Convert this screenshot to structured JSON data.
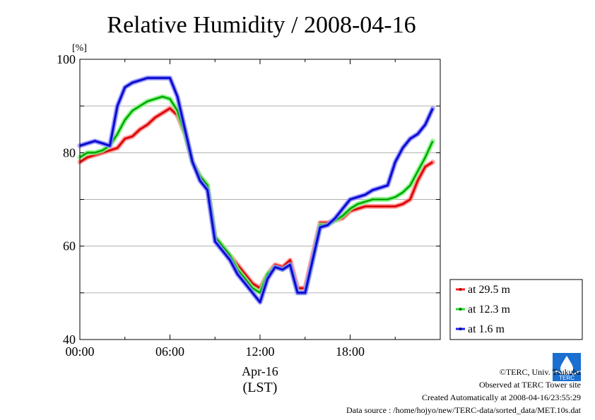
{
  "chart_data": {
    "type": "line",
    "title": "Relative Humidity / 2008-04-16",
    "ylabel_unit": "[%]",
    "xlabel_date": "Apr-16",
    "xlabel_tz": "(LST)",
    "ylim": [
      40,
      100
    ],
    "xlim": [
      0,
      24
    ],
    "yticks": [
      40,
      60,
      80,
      100
    ],
    "xtick_labels": [
      "00:00",
      "06:00",
      "12:00",
      "18:00"
    ],
    "grid": true,
    "legend_position": "right-bottom",
    "x": [
      0,
      0.5,
      1,
      1.5,
      2,
      2.5,
      3,
      3.5,
      4,
      4.5,
      5,
      5.5,
      6,
      6.5,
      7,
      7.5,
      8,
      8.5,
      9,
      9.5,
      10,
      10.5,
      11,
      11.5,
      12,
      12.5,
      13,
      13.5,
      14,
      14.5,
      15,
      15.5,
      16,
      16.5,
      17,
      17.5,
      18,
      18.5,
      19,
      19.5,
      20,
      20.5,
      21,
      21.5,
      22,
      22.5,
      23,
      23.5
    ],
    "series": [
      {
        "name": "at 29.5 m",
        "color": "#ff2020",
        "values": [
          78,
          79,
          79.5,
          80,
          80.5,
          81,
          83,
          83.5,
          85,
          86,
          87.5,
          88.5,
          89.5,
          88,
          84,
          78,
          75,
          73,
          62,
          60,
          58,
          56,
          54,
          52,
          51,
          54,
          56,
          55.5,
          57,
          51,
          51,
          58,
          65,
          65,
          65.5,
          66,
          67.5,
          68,
          68.5,
          68.5,
          68.5,
          68.5,
          68.5,
          69,
          70,
          74,
          77,
          78
        ]
      },
      {
        "name": "at 12.3 m",
        "color": "#20e020",
        "values": [
          79,
          80,
          80,
          80.5,
          81.5,
          84,
          87,
          89,
          90,
          91,
          91.5,
          92,
          91.5,
          89,
          84,
          78,
          75,
          73,
          62,
          60,
          58,
          55,
          53,
          51,
          50,
          54,
          55.5,
          55,
          56,
          50,
          50,
          57,
          64.5,
          64.5,
          65.5,
          66.5,
          68,
          69,
          69.5,
          70,
          70,
          70,
          70.5,
          71.5,
          73,
          76,
          79,
          82.5
        ]
      },
      {
        "name": "at 1.6 m",
        "color": "#2020ff",
        "values": [
          81.5,
          82,
          82.5,
          82,
          81.5,
          90,
          94,
          95,
          95.5,
          96,
          96,
          96,
          96,
          92,
          85,
          78,
          74,
          72,
          61,
          59,
          57,
          54,
          52,
          50,
          48,
          53,
          55.5,
          55,
          56,
          50,
          50,
          57,
          64,
          64.5,
          66,
          68,
          70,
          70.5,
          71,
          72,
          72.5,
          73,
          78,
          81,
          83,
          84,
          86,
          89.5
        ]
      }
    ]
  },
  "credits": {
    "copyright": "©TERC, Univ. Tsukuba",
    "observed": "Observed at TERC Tower site",
    "created": "Created Automatically at 2008-04-16/23:55:29",
    "source": "Data source : /home/hojyo/new/TERC-data/sorted_data/MET.10s.dat",
    "logo_text": "TERC"
  }
}
